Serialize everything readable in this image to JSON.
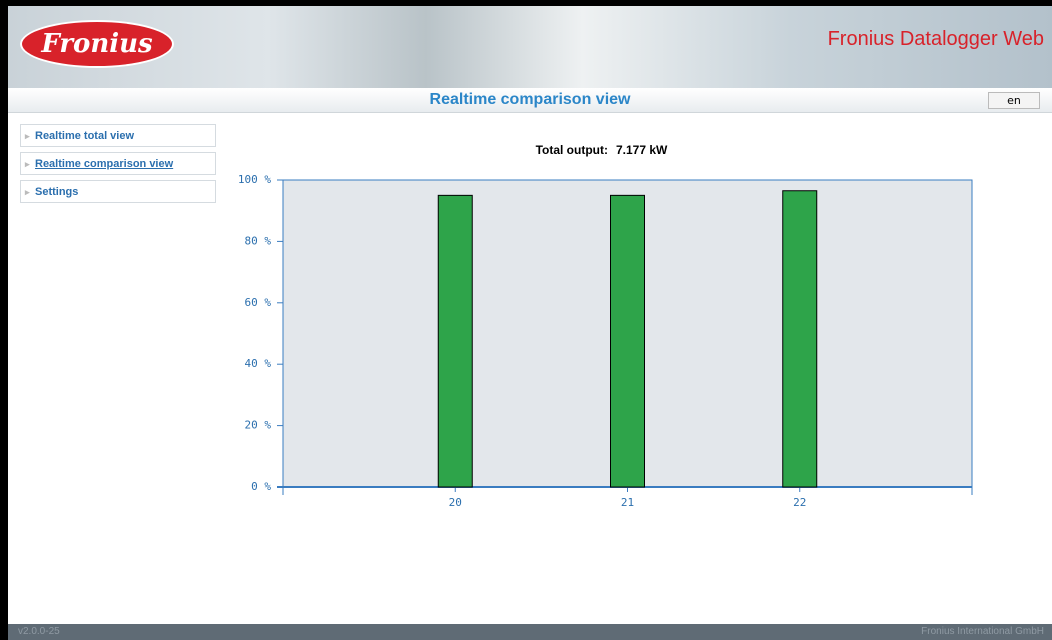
{
  "header": {
    "logo": "Fronius",
    "app_title": "Fronius Datalogger Web"
  },
  "page_title": "Realtime comparison view",
  "language": "en",
  "menu": [
    "Realtime total view",
    "Realtime comparison view",
    "Settings"
  ],
  "chart_data": {
    "type": "bar",
    "title": "Total output:",
    "total_output": "7.177 kW",
    "categories": [
      "20",
      "21",
      "22"
    ],
    "values": [
      95,
      95,
      96.5
    ],
    "color": "#2ea44a",
    "ylim": [
      0,
      100
    ],
    "yticks": [
      {
        "value": 0,
        "label": "0 %"
      },
      {
        "value": 20,
        "label": "20 %"
      },
      {
        "value": 40,
        "label": "40 %"
      },
      {
        "value": 60,
        "label": "60 %"
      },
      {
        "value": 80,
        "label": "80 %"
      },
      {
        "value": 100,
        "label": "100 %"
      }
    ],
    "grid": false
  },
  "footer": {
    "version": "v2.0.0-25",
    "company": "Fronius International GmbH"
  }
}
